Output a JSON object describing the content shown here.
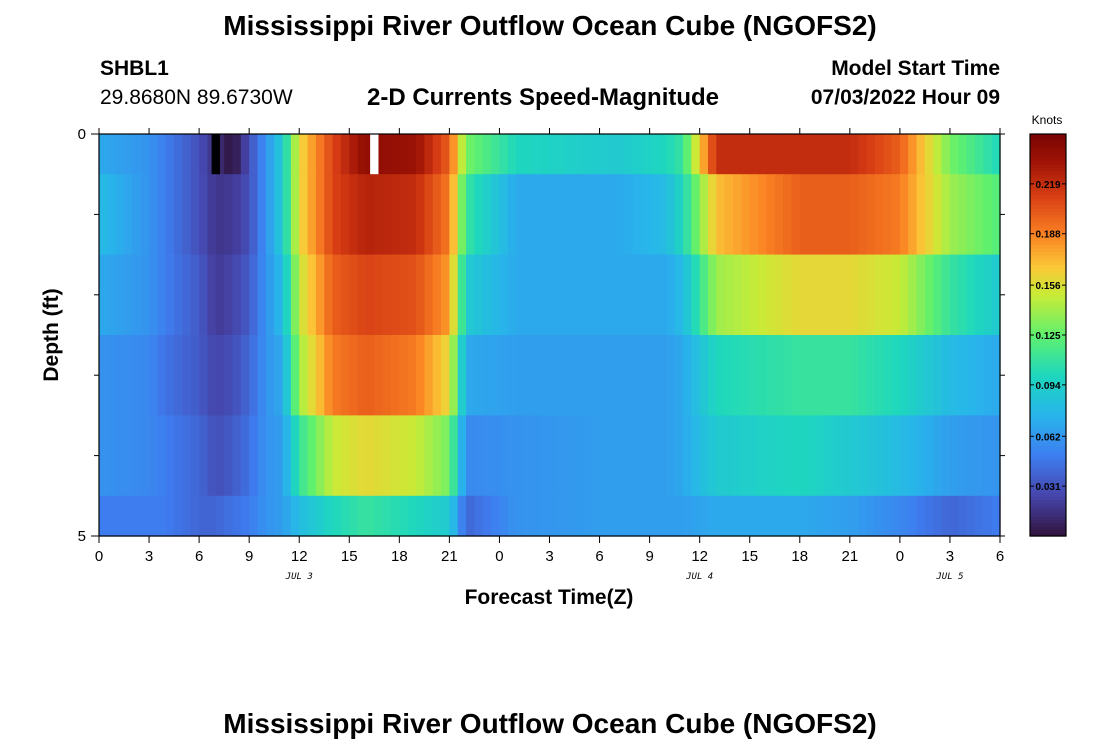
{
  "page": {
    "title": "Mississippi River Outflow Ocean Cube (NGOFS2)",
    "station_id": "SHBL1",
    "station_coords": "29.8680N  89.6730W",
    "subtitle": "2-D Currents Speed-Magnitude",
    "model_start_label": "Model Start Time",
    "model_start_value": "07/03/2022 Hour 09",
    "bottom_title": "Mississippi River Outflow Ocean Cube (NGOFS2)"
  },
  "chart_data": {
    "type": "heatmap",
    "title": "2-D Currents Speed-Magnitude",
    "xlabel": "Forecast Time(Z)",
    "ylabel": "Depth (ft)",
    "x_range_hours": [
      0,
      54
    ],
    "x_tick_labels": [
      "0",
      "3",
      "6",
      "9",
      "12",
      "15",
      "18",
      "21",
      "0",
      "3",
      "6",
      "9",
      "12",
      "15",
      "18",
      "21",
      "0",
      "3",
      "6"
    ],
    "date_labels": [
      {
        "label": "JUL 3",
        "hour": 12
      },
      {
        "label": "JUL 4",
        "hour": 36
      },
      {
        "label": "JUL 5",
        "hour": 51
      }
    ],
    "y_tick_labels": [
      "0",
      "5"
    ],
    "y_range_ft": [
      0,
      5
    ],
    "layer_bounds_ft": [
      0,
      0.5,
      1.5,
      2.5,
      3.5,
      4.5,
      5
    ],
    "time_step_hours": 0.5,
    "colorbar": {
      "label": "Knots",
      "min": 0,
      "max": 0.25,
      "tick_values": [
        0.031,
        0.062,
        0.094,
        0.125,
        0.156,
        0.188,
        0.219
      ],
      "tick_labels": [
        "0.031",
        "0.062",
        "0.094",
        "0.125",
        "0.156",
        "0.188",
        "0.219"
      ]
    },
    "speed_knots": [
      [
        0.07,
        0.06,
        0.05,
        0.03,
        0.015,
        0.0,
        0.03,
        0.06,
        0.09,
        0.16,
        0.21,
        0.24,
        0.235,
        0.2,
        0.13,
        0.1,
        0.09,
        0.1,
        0.11,
        0.22,
        0.22,
        0.22,
        0.2,
        0.13,
        0.1
      ],
      [
        0.08,
        0.06,
        0.05,
        0.03,
        0.018,
        0.02,
        0.03,
        0.06,
        0.09,
        0.16,
        0.21,
        0.225,
        0.22,
        0.19,
        0.11,
        0.07,
        0.07,
        0.08,
        0.1,
        0.17,
        0.2,
        0.2,
        0.19,
        0.14,
        0.12
      ],
      [
        0.07,
        0.06,
        0.05,
        0.035,
        0.02,
        0.025,
        0.035,
        0.06,
        0.08,
        0.15,
        0.2,
        0.21,
        0.205,
        0.18,
        0.09,
        0.07,
        0.07,
        0.07,
        0.08,
        0.14,
        0.16,
        0.16,
        0.15,
        0.11,
        0.09
      ],
      [
        0.06,
        0.055,
        0.045,
        0.035,
        0.025,
        0.03,
        0.04,
        0.06,
        0.07,
        0.14,
        0.19,
        0.2,
        0.19,
        0.16,
        0.07,
        0.065,
        0.065,
        0.065,
        0.07,
        0.1,
        0.11,
        0.11,
        0.1,
        0.08,
        0.07
      ],
      [
        0.06,
        0.055,
        0.05,
        0.04,
        0.03,
        0.035,
        0.045,
        0.06,
        0.065,
        0.11,
        0.15,
        0.16,
        0.15,
        0.13,
        0.055,
        0.06,
        0.065,
        0.065,
        0.07,
        0.09,
        0.1,
        0.09,
        0.08,
        0.065,
        0.06
      ],
      [
        0.05,
        0.05,
        0.05,
        0.04,
        0.04,
        0.045,
        0.05,
        0.06,
        0.065,
        0.08,
        0.1,
        0.11,
        0.1,
        0.09,
        0.04,
        0.06,
        0.065,
        0.065,
        0.065,
        0.07,
        0.07,
        0.065,
        0.055,
        0.04,
        0.05
      ]
    ],
    "speed_knot_hours": [
      0,
      3,
      4,
      6,
      7,
      8,
      9,
      10,
      11,
      12,
      14,
      16,
      19,
      21,
      22,
      25,
      31,
      34,
      35,
      37,
      42,
      45,
      48,
      51,
      54
    ],
    "missing_cells": [
      {
        "hour": 7,
        "layer": 0,
        "color": "#000000"
      },
      {
        "hour": 16.5,
        "layer": 0,
        "color": "#ffffff"
      }
    ]
  }
}
